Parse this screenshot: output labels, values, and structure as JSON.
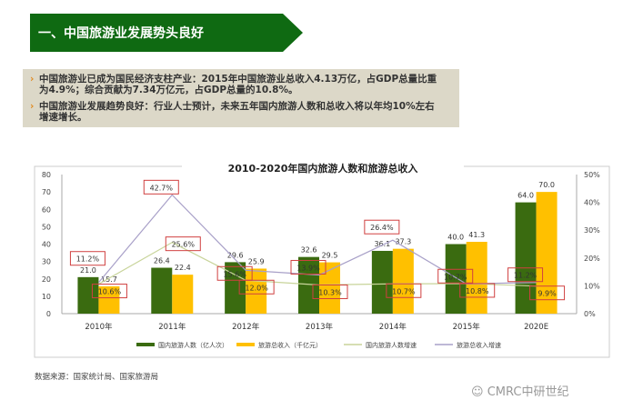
{
  "header": {
    "title": "一、中国旅游业发展势头良好"
  },
  "notes": [
    "中国旅游业已成为国民经济支柱产业：2015年中国旅游业总收入4.13万亿，占GDP总量比重为4.9%；综合贡献为7.34万亿元，占GDP总量的10.8%。",
    "中国旅游业发展趋势良好：行业人士预计，未来五年国内旅游人数和总收入将以年均10%左右增速增长。"
  ],
  "chart_data": {
    "type": "bar",
    "title": "2010-2020年国内旅游人数和旅游总收入",
    "categories": [
      "2010年",
      "2011年",
      "2012年",
      "2013年",
      "2014年",
      "2015年",
      "2020E"
    ],
    "ylim": [
      0,
      80
    ],
    "y_ticks": [
      "0",
      "10",
      "20",
      "30",
      "40",
      "50",
      "60",
      "70",
      "80"
    ],
    "y2lim": [
      0,
      50
    ],
    "y2_ticks": [
      "0%",
      "10%",
      "20%",
      "30%",
      "40%",
      "50%"
    ],
    "series": [
      {
        "name": "国内旅游人数（亿人次）",
        "type": "bar",
        "color": "#3a6b10",
        "values": [
          21.0,
          26.4,
          29.6,
          32.6,
          36.1,
          40.0,
          64.0
        ],
        "labels": [
          "21.0",
          "26.4",
          "29.6",
          "32.6",
          "36.1",
          "40.0",
          "64.0"
        ]
      },
      {
        "name": "旅游总收入（千亿元）",
        "type": "bar",
        "color": "#ffc000",
        "values": [
          15.7,
          22.4,
          25.9,
          29.5,
          37.3,
          41.3,
          70.0
        ],
        "labels": [
          "15.7",
          "22.4",
          "25.9",
          "29.5",
          "37.3",
          "41.3",
          "70.0"
        ]
      },
      {
        "name": "国内旅游人数增速",
        "type": "line",
        "axis": "right",
        "color": "#c8d49a",
        "values": [
          10.6,
          25.6,
          12.0,
          10.3,
          10.7,
          10.8,
          9.9
        ],
        "labels": [
          "10.6%",
          "25.6%",
          "12.0%",
          "10.3%",
          "10.7%",
          "10.8%",
          "9.9%"
        ]
      },
      {
        "name": "旅游总收入增速",
        "type": "line",
        "axis": "right",
        "color": "#a8a0c8",
        "values": [
          11.2,
          42.7,
          15.6,
          13.9,
          26.4,
          10.7,
          11.2
        ],
        "labels": [
          "11.2%",
          "42.7%",
          "15.6%",
          "13.9%",
          "26.4%",
          "10.7%",
          "11.2%"
        ]
      }
    ]
  },
  "footer": {
    "source": "数据来源：国家统计局、国家旅游局",
    "logo": "CMRC中研世纪"
  }
}
